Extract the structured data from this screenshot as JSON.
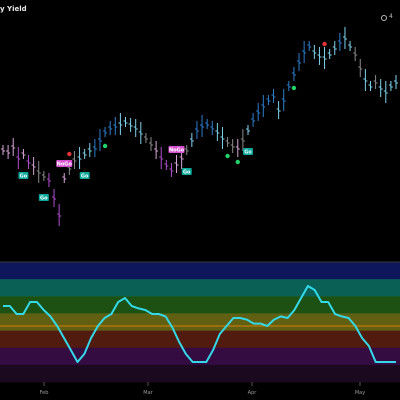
{
  "title": "y Yield",
  "top_right": {
    "icon": "circle-icon",
    "label": "4"
  },
  "colors": {
    "bar_bull": "#2d7fd0",
    "bar_bull_weak": "#7fd3ee",
    "bar_neutral": "#8a8a8a",
    "bar_bear_weak": "#d9a6d9",
    "bar_bear": "#b14fcf",
    "go_bg": "#0aa89a",
    "nogo_bg": "#d54fcf",
    "dot_green": "#21d46a",
    "dot_red": "#e5333a",
    "osc_line": "#33d9e8",
    "osc_zero": "#ff8a00",
    "bands": [
      "#0f1a66",
      "#0b6a5e",
      "#205a16",
      "#6b6914",
      "#5b1e12",
      "#3a0d49",
      "#1e0a22"
    ]
  },
  "chart_data": {
    "type": "line",
    "title": "",
    "x": [
      "Feb",
      "Mar",
      "Apr",
      "May"
    ],
    "price_panel": {
      "bars": [
        {
          "i": 0,
          "v": 150,
          "c": "bear_weak"
        },
        {
          "i": 1,
          "v": 152,
          "c": "bear_weak"
        },
        {
          "i": 2,
          "v": 147,
          "c": "bear_weak"
        },
        {
          "i": 3,
          "v": 158,
          "c": "bear"
        },
        {
          "i": 4,
          "v": 154,
          "c": "bear_weak"
        },
        {
          "i": 5,
          "v": 162,
          "c": "bear"
        },
        {
          "i": 6,
          "v": 166,
          "c": "bear_weak"
        },
        {
          "i": 7,
          "v": 172,
          "c": "neutral"
        },
        {
          "i": 8,
          "v": 176,
          "c": "neutral"
        },
        {
          "i": 9,
          "v": 180,
          "c": "bear"
        },
        {
          "i": 10,
          "v": 198,
          "c": "bear"
        },
        {
          "i": 11,
          "v": 215,
          "c": "bear"
        },
        {
          "i": 12,
          "v": 178,
          "c": "bear_weak"
        },
        {
          "i": 13,
          "v": 168,
          "c": "neutral"
        },
        {
          "i": 14,
          "v": 160,
          "c": "neutral"
        },
        {
          "i": 15,
          "v": 158,
          "c": "bull_weak"
        },
        {
          "i": 16,
          "v": 154,
          "c": "bull_weak"
        },
        {
          "i": 17,
          "v": 150,
          "c": "bull_weak"
        },
        {
          "i": 18,
          "v": 148,
          "c": "bull"
        },
        {
          "i": 19,
          "v": 140,
          "c": "bull"
        },
        {
          "i": 20,
          "v": 132,
          "c": "bull"
        },
        {
          "i": 21,
          "v": 128,
          "c": "bull"
        },
        {
          "i": 22,
          "v": 126,
          "c": "bull"
        },
        {
          "i": 23,
          "v": 124,
          "c": "bull_weak"
        },
        {
          "i": 24,
          "v": 122,
          "c": "bull_weak"
        },
        {
          "i": 25,
          "v": 125,
          "c": "bull_weak"
        },
        {
          "i": 26,
          "v": 128,
          "c": "bull_weak"
        },
        {
          "i": 27,
          "v": 133,
          "c": "bull_weak"
        },
        {
          "i": 28,
          "v": 138,
          "c": "neutral"
        },
        {
          "i": 29,
          "v": 144,
          "c": "neutral"
        },
        {
          "i": 30,
          "v": 150,
          "c": "bear_weak"
        },
        {
          "i": 31,
          "v": 158,
          "c": "bear"
        },
        {
          "i": 32,
          "v": 165,
          "c": "bear"
        },
        {
          "i": 33,
          "v": 170,
          "c": "bear"
        },
        {
          "i": 34,
          "v": 164,
          "c": "bear_weak"
        },
        {
          "i": 35,
          "v": 158,
          "c": "bear_weak"
        },
        {
          "i": 36,
          "v": 150,
          "c": "neutral"
        },
        {
          "i": 37,
          "v": 140,
          "c": "bull_weak"
        },
        {
          "i": 38,
          "v": 130,
          "c": "bull"
        },
        {
          "i": 39,
          "v": 126,
          "c": "bull"
        },
        {
          "i": 40,
          "v": 124,
          "c": "bull"
        },
        {
          "i": 41,
          "v": 128,
          "c": "bull"
        },
        {
          "i": 42,
          "v": 132,
          "c": "bull_weak"
        },
        {
          "i": 43,
          "v": 138,
          "c": "bull_weak"
        },
        {
          "i": 44,
          "v": 142,
          "c": "neutral"
        },
        {
          "i": 45,
          "v": 146,
          "c": "neutral"
        },
        {
          "i": 46,
          "v": 148,
          "c": "bear_weak"
        },
        {
          "i": 47,
          "v": 140,
          "c": "neutral"
        },
        {
          "i": 48,
          "v": 130,
          "c": "bull_weak"
        },
        {
          "i": 49,
          "v": 120,
          "c": "bull"
        },
        {
          "i": 50,
          "v": 112,
          "c": "bull"
        },
        {
          "i": 51,
          "v": 106,
          "c": "bull"
        },
        {
          "i": 52,
          "v": 100,
          "c": "bull"
        },
        {
          "i": 53,
          "v": 96,
          "c": "bull"
        },
        {
          "i": 54,
          "v": 110,
          "c": "bull_weak"
        },
        {
          "i": 55,
          "v": 100,
          "c": "bull"
        },
        {
          "i": 56,
          "v": 86,
          "c": "bull"
        },
        {
          "i": 57,
          "v": 74,
          "c": "bull"
        },
        {
          "i": 58,
          "v": 62,
          "c": "bull"
        },
        {
          "i": 59,
          "v": 52,
          "c": "bull"
        },
        {
          "i": 60,
          "v": 46,
          "c": "bull"
        },
        {
          "i": 61,
          "v": 52,
          "c": "bull_weak"
        },
        {
          "i": 62,
          "v": 56,
          "c": "bull_weak"
        },
        {
          "i": 63,
          "v": 58,
          "c": "bull_weak"
        },
        {
          "i": 64,
          "v": 54,
          "c": "bull_weak"
        },
        {
          "i": 65,
          "v": 48,
          "c": "bull_weak"
        },
        {
          "i": 66,
          "v": 42,
          "c": "bull"
        },
        {
          "i": 67,
          "v": 38,
          "c": "bull_weak"
        },
        {
          "i": 68,
          "v": 46,
          "c": "bull_weak"
        },
        {
          "i": 69,
          "v": 54,
          "c": "neutral"
        },
        {
          "i": 70,
          "v": 68,
          "c": "neutral"
        },
        {
          "i": 71,
          "v": 80,
          "c": "bull_weak"
        },
        {
          "i": 72,
          "v": 86,
          "c": "bull_weak"
        },
        {
          "i": 73,
          "v": 82,
          "c": "neutral"
        },
        {
          "i": 74,
          "v": 88,
          "c": "bull_weak"
        },
        {
          "i": 75,
          "v": 92,
          "c": "bull_weak"
        },
        {
          "i": 76,
          "v": 86,
          "c": "bull_weak"
        },
        {
          "i": 77,
          "v": 82,
          "c": "bull_weak"
        }
      ],
      "signals": [
        {
          "type": "nogo",
          "text": "NoGo",
          "i": 12
        },
        {
          "type": "go",
          "text": "Go",
          "i": 4
        },
        {
          "type": "go",
          "text": "Go",
          "i": 8
        },
        {
          "type": "go",
          "text": "Go",
          "i": 16
        },
        {
          "type": "nogo",
          "text": "NoGo",
          "i": 34
        },
        {
          "type": "go",
          "text": "Go",
          "i": 36
        },
        {
          "type": "go",
          "text": "Go",
          "i": 48
        }
      ],
      "dots": [
        {
          "color": "green",
          "i": 20
        },
        {
          "color": "red",
          "i": 13
        },
        {
          "color": "green",
          "i": 44
        },
        {
          "color": "green",
          "i": 46
        },
        {
          "color": "green",
          "i": 57
        },
        {
          "color": "red",
          "i": 63
        }
      ]
    },
    "oscillator": {
      "values": [
        2.5,
        2.5,
        1.5,
        1.5,
        3.0,
        3.0,
        2.0,
        1.2,
        0,
        -1.5,
        -3.0,
        -4.5,
        -3.5,
        -1.5,
        0,
        1.0,
        1.5,
        3.0,
        3.5,
        2.5,
        2.2,
        2.0,
        1.5,
        1.5,
        1.2,
        -0.2,
        -2.0,
        -3.5,
        -4.5,
        -4.5,
        -4.5,
        -3.0,
        -1.0,
        0,
        1.0,
        1.0,
        0.8,
        0.3,
        0.3,
        0,
        0.8,
        1.2,
        1.0,
        2.0,
        3.5,
        5.0,
        4.5,
        3.0,
        3.0,
        1.5,
        1.2,
        1.0,
        0,
        -1.5,
        -2.5,
        -4.5,
        -4.5,
        -4.5,
        -4.5
      ],
      "bands": [
        6,
        4,
        2,
        0,
        -2,
        -4,
        -6
      ],
      "range": [
        -7,
        8
      ]
    }
  }
}
